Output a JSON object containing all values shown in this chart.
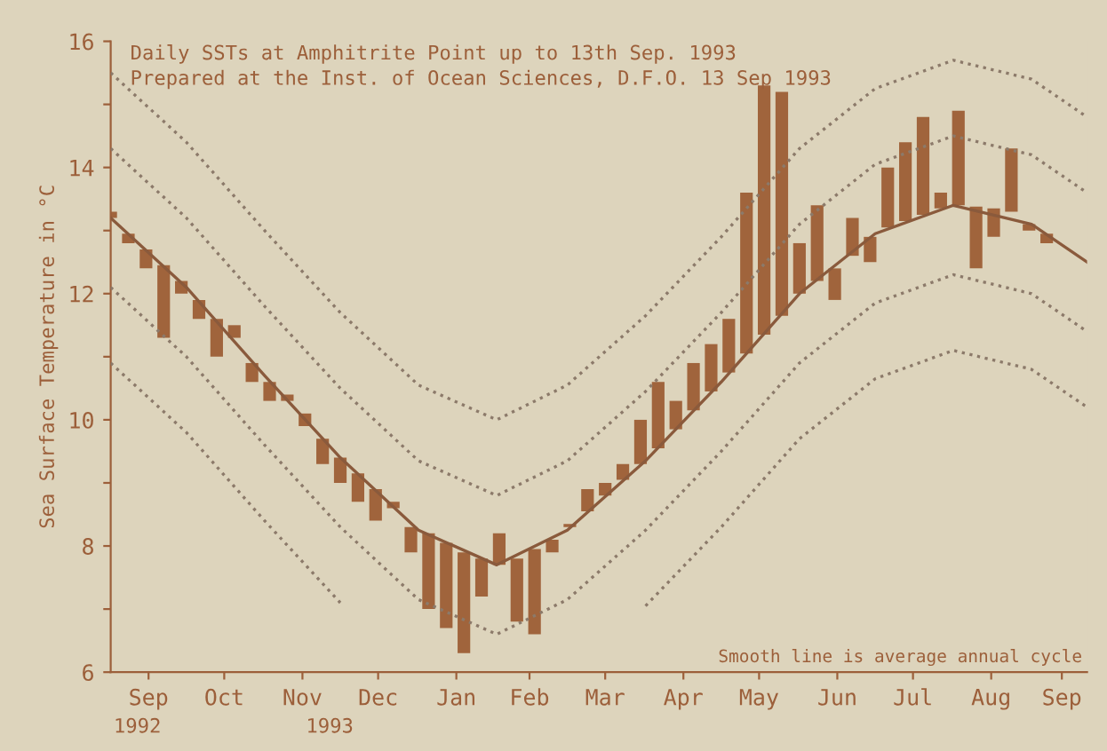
{
  "chart_data": {
    "type": "bar",
    "title": "Daily SSTs at Amphitrite Point up to 13th Sep. 1993",
    "subtitle": "Prepared at the Inst. of Ocean Sciences, D.F.O. 13 Sep 1993",
    "ylabel": "Sea Surface Temperature in °C",
    "annotations": [
      "Smooth line is average annual cycle",
      "1992",
      "1993"
    ],
    "xlim": [
      "1992-09-01",
      "1993-09-23"
    ],
    "xticks": [
      {
        "value": "1992-09-16",
        "label": "Sep"
      },
      {
        "value": "1992-10-16",
        "label": "Oct"
      },
      {
        "value": "1992-11-16",
        "label": "Nov"
      },
      {
        "value": "1992-12-16",
        "label": "Dec"
      },
      {
        "value": "1993-01-16",
        "label": "Jan"
      },
      {
        "value": "1993-02-14",
        "label": "Feb"
      },
      {
        "value": "1993-03-16",
        "label": "Mar"
      },
      {
        "value": "1993-04-16",
        "label": "Apr"
      },
      {
        "value": "1993-05-16",
        "label": "May"
      },
      {
        "value": "1993-06-16",
        "label": "Jun"
      },
      {
        "value": "1993-07-16",
        "label": "Jul"
      },
      {
        "value": "1993-08-16",
        "label": "Aug"
      },
      {
        "value": "1993-09-13",
        "label": "Sep"
      }
    ],
    "ylim": [
      6,
      16
    ],
    "yticks": [
      6,
      {
        "value": 7,
        "label": null
      },
      8,
      {
        "value": 9,
        "label": null
      },
      10,
      {
        "value": 11,
        "label": null
      },
      12,
      {
        "value": 13,
        "label": null
      },
      14,
      {
        "value": 15,
        "label": null
      },
      16
    ],
    "grid": false,
    "legend": false,
    "series": [
      {
        "color": "#a0643c",
        "x": [
          "1992-09-01",
          "1992-09-08",
          "1992-09-15",
          "1992-09-22",
          "1992-09-29",
          "1992-10-06",
          "1992-10-13",
          "1992-10-20",
          "1992-10-27",
          "1992-11-03",
          "1992-11-10",
          "1992-11-17",
          "1992-11-24",
          "1992-12-01",
          "1992-12-08",
          "1992-12-15",
          "1992-12-22",
          "1992-12-29",
          "1993-01-05",
          "1993-01-12",
          "1993-01-19",
          "1993-01-26",
          "1993-02-02",
          "1993-02-09",
          "1993-02-16",
          "1993-02-23",
          "1993-03-02",
          "1993-03-09",
          "1993-03-16",
          "1993-03-23",
          "1993-03-30",
          "1993-04-06",
          "1993-04-13",
          "1993-04-20",
          "1993-04-27",
          "1993-05-04",
          "1993-05-11",
          "1993-05-18",
          "1993-05-25",
          "1993-06-01",
          "1993-06-08",
          "1993-06-15",
          "1993-06-22",
          "1993-06-29",
          "1993-07-06",
          "1993-07-13",
          "1993-07-20",
          "1993-07-27",
          "1993-08-03",
          "1993-08-10",
          "1993-08-17",
          "1993-08-24",
          "1993-08-31",
          "1993-09-07"
        ],
        "base": [
          13.2,
          12.95,
          12.7,
          12.45,
          12.2,
          11.9,
          11.6,
          11.3,
          10.9,
          10.6,
          10.3,
          10.1,
          9.7,
          9.4,
          9.15,
          8.9,
          8.6,
          8.3,
          8.2,
          8.05,
          7.9,
          7.8,
          7.7,
          7.8,
          7.95,
          8.1,
          8.3,
          8.55,
          8.8,
          9.05,
          9.3,
          9.55,
          9.85,
          10.15,
          10.45,
          10.75,
          11.05,
          11.35,
          11.65,
          12.0,
          12.2,
          12.4,
          12.6,
          12.9,
          13.05,
          13.15,
          13.25,
          13.35,
          13.4,
          13.38,
          13.35,
          13.3,
          13.1,
          12.95
        ],
        "values": [
          0.1,
          -0.15,
          -0.3,
          -1.15,
          -0.2,
          -0.3,
          -0.6,
          0.2,
          -0.3,
          -0.3,
          0.1,
          -0.2,
          -0.4,
          -0.4,
          -0.45,
          -0.5,
          0.1,
          -0.4,
          -1.2,
          -1.35,
          -1.6,
          -0.6,
          0.5,
          -1.0,
          -1.35,
          -0.2,
          0.05,
          0.35,
          0.2,
          0.25,
          0.7,
          1.05,
          0.45,
          0.75,
          0.75,
          0.85,
          2.55,
          3.95,
          3.55,
          0.8,
          1.2,
          -0.5,
          0.6,
          -0.4,
          0.95,
          1.25,
          1.55,
          0.25,
          1.5,
          -0.98,
          -0.45,
          1.0,
          -0.1,
          -0.15
        ]
      },
      {
        "type": "line",
        "line_style": "solid",
        "color": "#8a5a3c",
        "x": [
          "1992-09-01",
          "1992-10-01",
          "1992-11-01",
          "1992-12-01",
          "1993-01-01",
          "1993-02-01",
          "1993-03-01",
          "1993-04-01",
          "1993-05-01",
          "1993-06-01",
          "1993-07-01",
          "1993-08-01",
          "1993-09-01",
          "1993-09-23"
        ],
        "values": [
          13.2,
          12.1,
          10.7,
          9.4,
          8.25,
          7.7,
          8.25,
          9.35,
          10.6,
          12.0,
          12.95,
          13.4,
          13.1,
          12.5
        ]
      },
      {
        "type": "line",
        "line_style": "dotted",
        "color": "#8c7a6a",
        "x": [
          "1992-09-01",
          "1992-10-01",
          "1992-11-01",
          "1992-12-01",
          "1993-01-01",
          "1993-02-01",
          "1993-03-01",
          "1993-04-01",
          "1993-05-01",
          "1993-06-01",
          "1993-07-01",
          "1993-08-01",
          "1993-09-01",
          "1993-09-23"
        ],
        "values": [
          15.5,
          14.4,
          13.0,
          11.7,
          10.55,
          10.0,
          10.55,
          11.65,
          12.9,
          14.3,
          15.25,
          15.7,
          15.4,
          14.8
        ]
      },
      {
        "type": "line",
        "line_style": "dotted",
        "color": "#8c7a6a",
        "x": [
          "1992-09-01",
          "1992-10-01",
          "1992-11-01",
          "1992-12-01",
          "1993-01-01",
          "1993-02-01",
          "1993-03-01",
          "1993-04-01",
          "1993-05-01",
          "1993-06-01",
          "1993-07-01",
          "1993-08-01",
          "1993-09-01",
          "1993-09-23"
        ],
        "values": [
          14.3,
          13.2,
          11.8,
          10.5,
          9.35,
          8.8,
          9.35,
          10.45,
          11.7,
          13.1,
          14.05,
          14.5,
          14.2,
          13.6
        ]
      },
      {
        "type": "line",
        "line_style": "dotted",
        "color": "#8c7a6a",
        "x": [
          "1992-09-01",
          "1992-10-01",
          "1992-11-01",
          "1992-12-01",
          "1993-01-01",
          "1993-02-01",
          "1993-03-01",
          "1993-04-01",
          "1993-05-01",
          "1993-06-01",
          "1993-07-01",
          "1993-08-01",
          "1993-09-01",
          "1993-09-23"
        ],
        "values": [
          12.1,
          11.0,
          9.6,
          8.3,
          7.15,
          6.6,
          7.15,
          8.25,
          9.5,
          10.9,
          11.85,
          12.3,
          12.0,
          11.4
        ]
      },
      {
        "type": "line",
        "line_style": "dotted",
        "color": "#8c7a6a",
        "x": [
          "1992-09-01",
          "1992-10-01",
          "1992-11-01",
          "1992-12-01",
          "1993-01-01",
          "1993-02-01",
          "1993-03-01",
          "1993-04-01",
          "1993-05-01",
          "1993-06-01",
          "1993-07-01",
          "1993-08-01",
          "1993-09-01",
          "1993-09-23"
        ],
        "values": [
          10.9,
          9.8,
          8.4,
          7.1,
          null,
          null,
          null,
          7.05,
          8.3,
          9.7,
          10.65,
          11.1,
          10.8,
          10.2
        ]
      }
    ]
  }
}
